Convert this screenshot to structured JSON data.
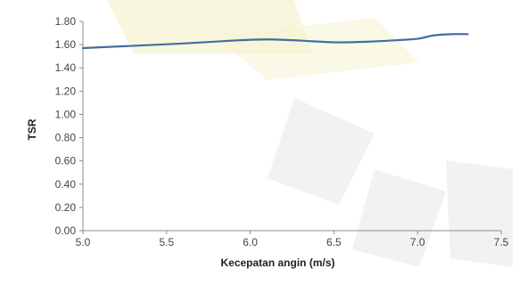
{
  "chart_data": {
    "type": "line",
    "title": "",
    "xlabel": "Kecepatan angin (m/s)",
    "ylabel": "TSR",
    "xlim": [
      5.0,
      7.5
    ],
    "ylim": [
      0.0,
      1.8
    ],
    "xticks": [
      "5.0",
      "5.5",
      "6.0",
      "6.5",
      "7.0",
      "7.5"
    ],
    "yticks": [
      "0.00",
      "0.20",
      "0.40",
      "0.60",
      "0.80",
      "1.00",
      "1.20",
      "1.40",
      "1.60",
      "1.80"
    ],
    "grid": false,
    "legend": "none",
    "series": [
      {
        "color": "#3f6f9f",
        "x": [
          5.0,
          5.3,
          5.6,
          5.9,
          6.1,
          6.3,
          6.5,
          6.7,
          6.9,
          7.0,
          7.05,
          7.1,
          7.2,
          7.3
        ],
        "y": [
          1.57,
          1.59,
          1.61,
          1.635,
          1.645,
          1.635,
          1.62,
          1.625,
          1.64,
          1.65,
          1.665,
          1.68,
          1.69,
          1.69
        ]
      }
    ]
  }
}
